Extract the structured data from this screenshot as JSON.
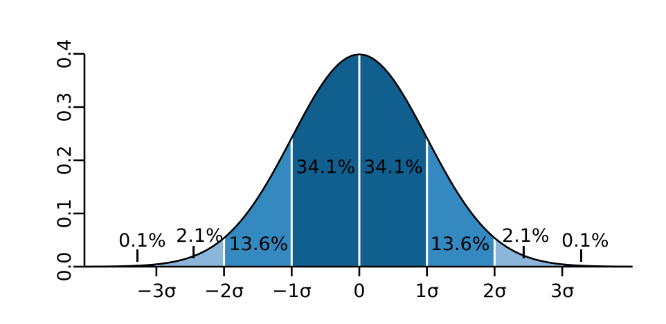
{
  "figure": {
    "background": "#ffffff",
    "title": ""
  },
  "chart_data": {
    "type": "area",
    "title": "",
    "description": "Standard normal distribution curve with shaded standard-deviation bands and their probabilities",
    "distribution": {
      "mean": 0,
      "sd": 1,
      "pdf_peak": 0.3989
    },
    "xlabel": "",
    "ylabel": "",
    "xlim_sigma": [
      -4.06,
      4.03
    ],
    "ylim": [
      0,
      0.4
    ],
    "grid": false,
    "legend": false,
    "x_axis": {
      "tick_values": [
        -3,
        -2,
        -1,
        0,
        1,
        2,
        3
      ],
      "tick_labels": [
        "−3σ",
        "−2σ",
        "−1σ",
        "0",
        "1σ",
        "2σ",
        "3σ"
      ]
    },
    "y_axis": {
      "tick_values": [
        0.0,
        0.1,
        0.2,
        0.3,
        0.4
      ],
      "tick_labels": [
        "0.0",
        "0.1",
        "0.2",
        "0.3",
        "0.4"
      ]
    },
    "bands": [
      {
        "from_sigma": -4.06,
        "to_sigma": -3,
        "fill": "#123a57",
        "percent": "0.1%"
      },
      {
        "from_sigma": -3,
        "to_sigma": -2,
        "fill": "#8cb6d9",
        "percent": "2.1%"
      },
      {
        "from_sigma": -2,
        "to_sigma": -1,
        "fill": "#3489c1",
        "percent": "13.6%"
      },
      {
        "from_sigma": -1,
        "to_sigma": 0,
        "fill": "#115f8f",
        "percent": "34.1%"
      },
      {
        "from_sigma": 0,
        "to_sigma": 1,
        "fill": "#115f8f",
        "percent": "34.1%"
      },
      {
        "from_sigma": 1,
        "to_sigma": 2,
        "fill": "#3489c1",
        "percent": "13.6%"
      },
      {
        "from_sigma": 2,
        "to_sigma": 3,
        "fill": "#8cb6d9",
        "percent": "2.1%"
      },
      {
        "from_sigma": 3,
        "to_sigma": 4.03,
        "fill": "#123a57",
        "percent": "0.1%"
      }
    ],
    "dividers": {
      "xs_sigma": [
        -3,
        -2,
        -1,
        0,
        1,
        2,
        3
      ],
      "color": "#ffffff"
    },
    "inside_labels": [
      {
        "text": "34.1%",
        "x_sigma": -0.5,
        "y_density": 0.176,
        "color": "#ffffff"
      },
      {
        "text": "34.1%",
        "x_sigma": 0.5,
        "y_density": 0.176,
        "color": "#ffffff"
      },
      {
        "text": "13.6%",
        "x_sigma": -1.49,
        "y_density": 0.031,
        "color": "#ffffff"
      },
      {
        "text": "13.6%",
        "x_sigma": 1.49,
        "y_density": 0.031,
        "color": "#ffffff"
      }
    ],
    "outside_labels": [
      {
        "text": "0.1%",
        "x_sigma": -3.21,
        "y_density": 0.0377,
        "color": "#000000",
        "marker_x_sigma": -3.28,
        "marker_top_density": 0.0325,
        "marker_bottom_density": 0.0091
      },
      {
        "text": "2.1%",
        "x_sigma": -2.36,
        "y_density": 0.0468,
        "color": "#000000",
        "marker_x_sigma": -2.45,
        "marker_top_density": 0.039,
        "marker_bottom_density": 0.0156
      },
      {
        "text": "2.1%",
        "x_sigma": 2.46,
        "y_density": 0.0468,
        "color": "#000000",
        "marker_x_sigma": 2.43,
        "marker_top_density": 0.039,
        "marker_bottom_density": 0.0156
      },
      {
        "text": "0.1%",
        "x_sigma": 3.34,
        "y_density": 0.0377,
        "color": "#000000",
        "marker_x_sigma": 3.28,
        "marker_top_density": 0.0325,
        "marker_bottom_density": 0.0091
      }
    ],
    "curve_color": "#000000",
    "axis_color": "#000000"
  }
}
